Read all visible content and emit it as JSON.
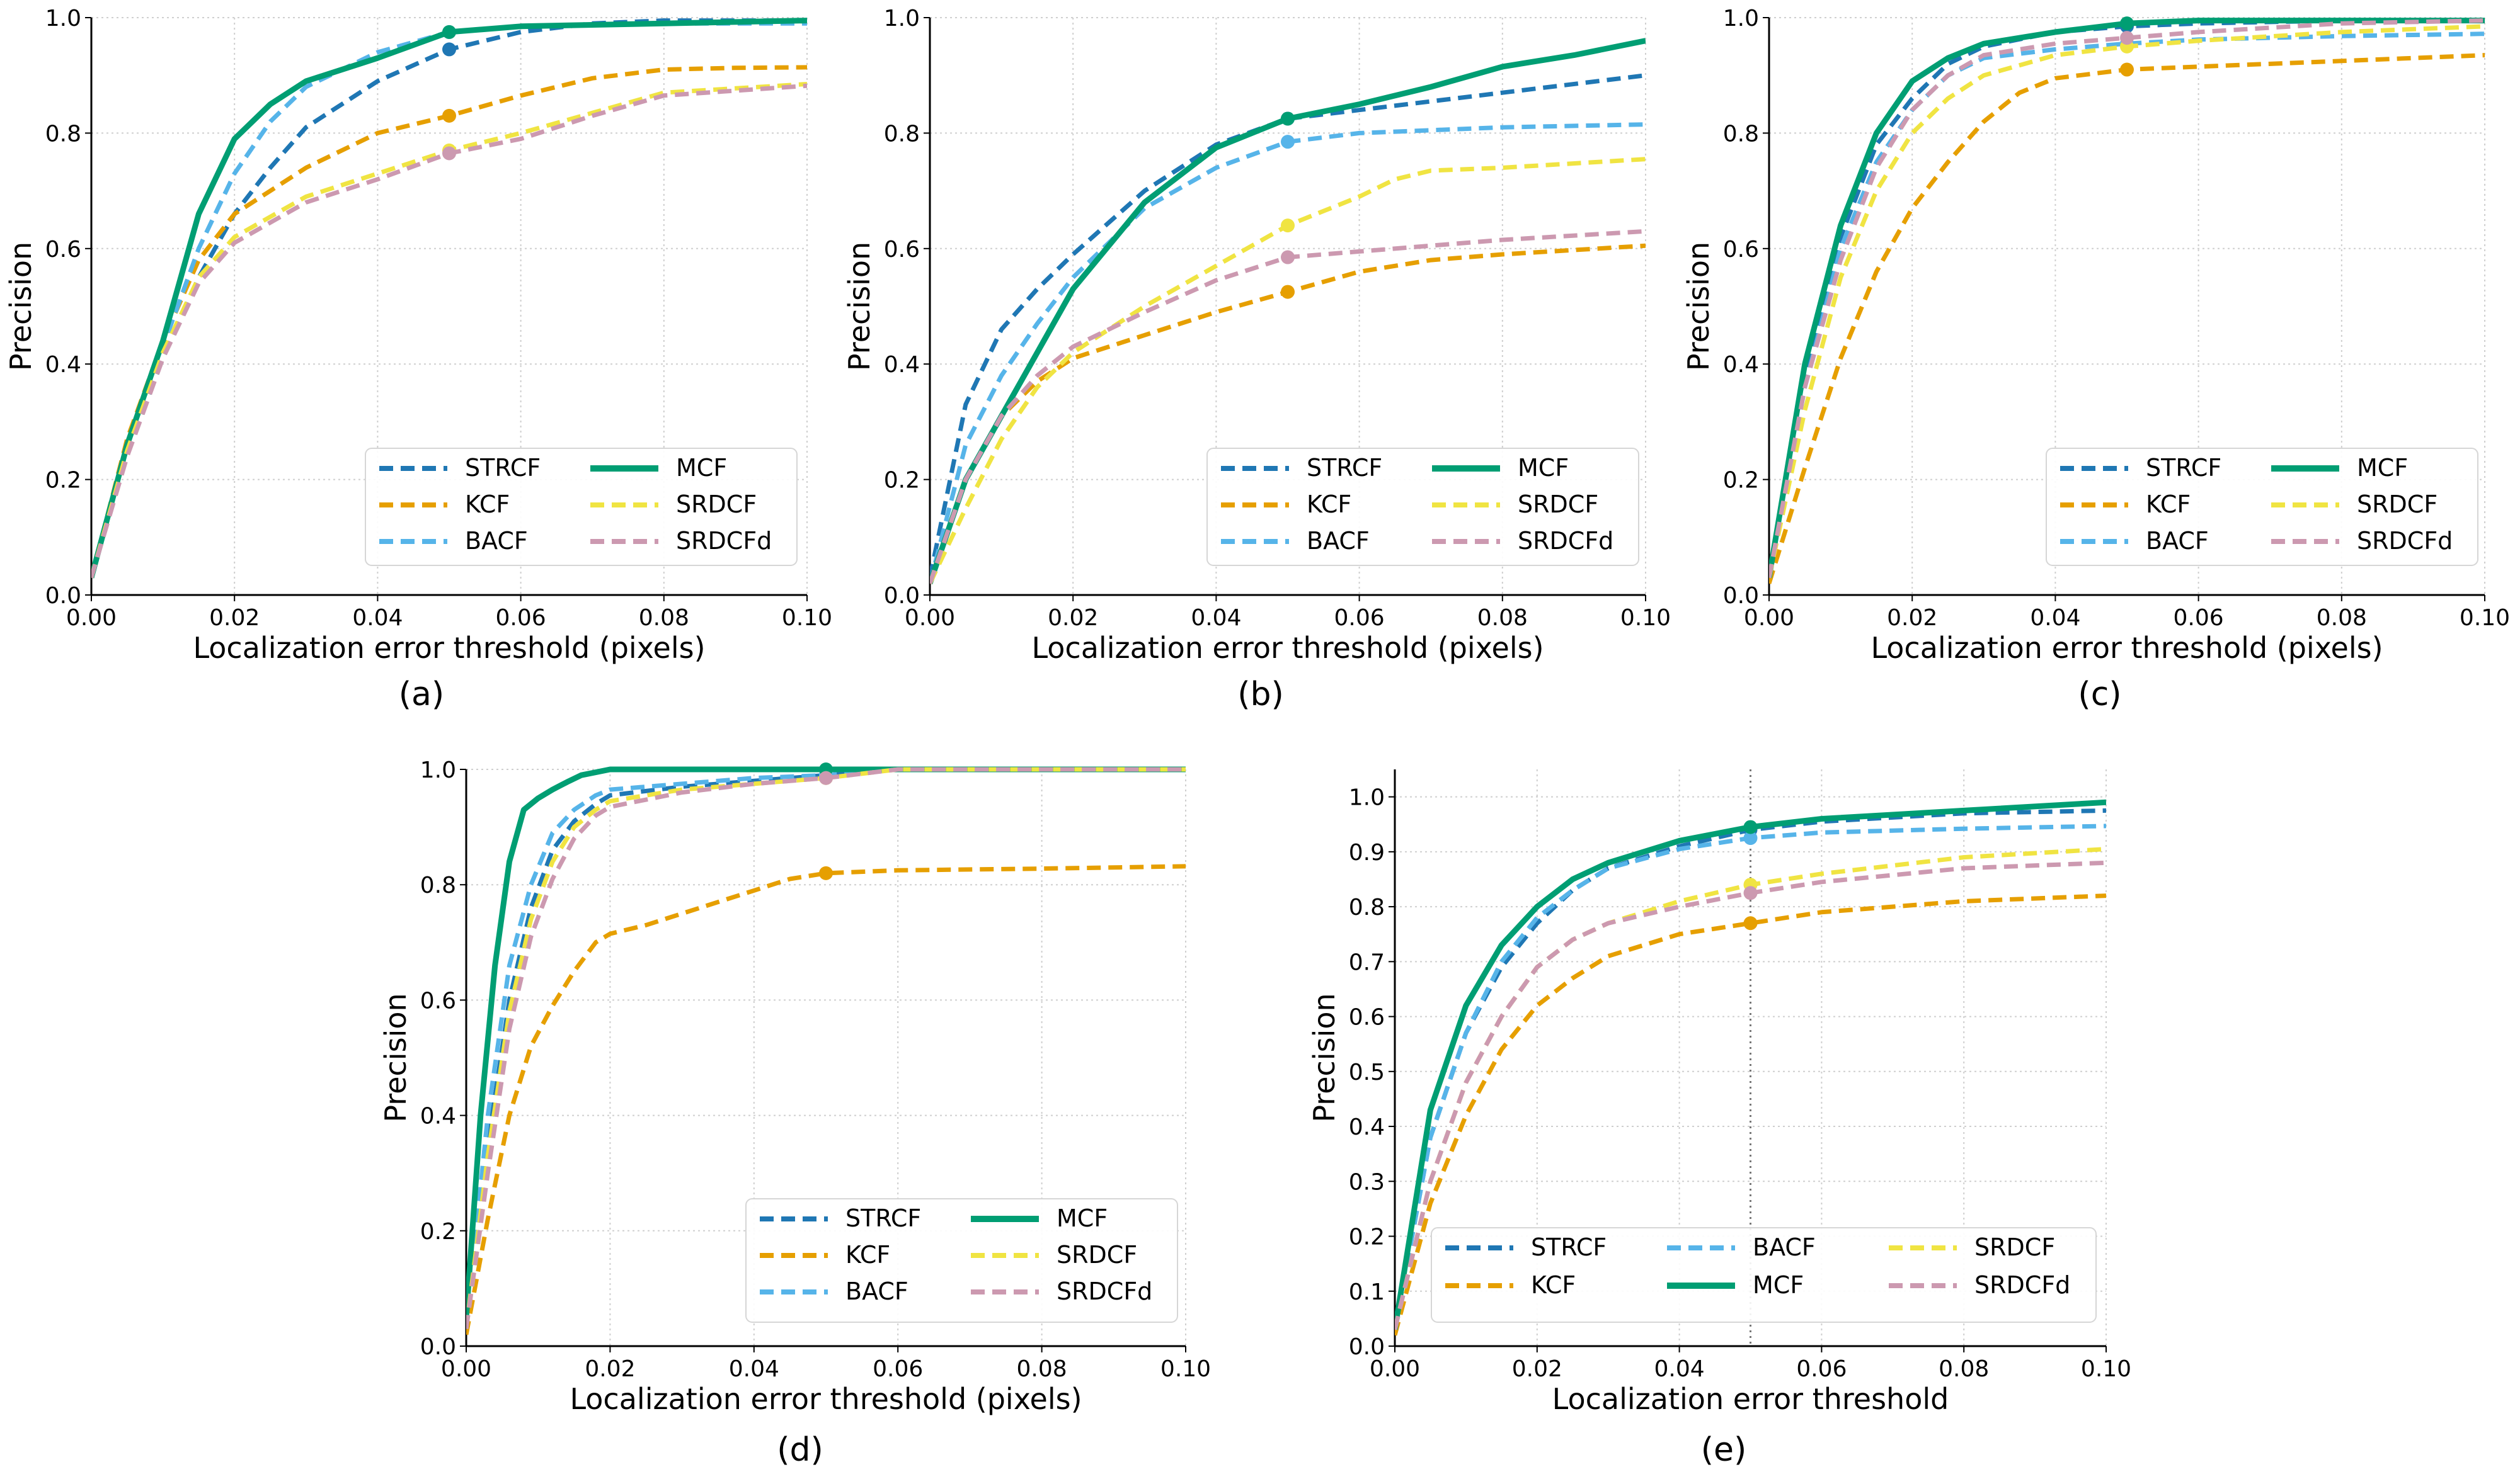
{
  "colors": {
    "STRCF": "#1f77b4",
    "KCF": "#e69f00",
    "BACF": "#56b4e9",
    "MCF": "#009e73",
    "SRDCF": "#f0e442",
    "SRDCFd": "#cc99b0"
  },
  "chart_data": [
    {
      "id": "a",
      "type": "line",
      "caption": "(a)",
      "xlabel": "Localization error threshold (pixels)",
      "ylabel": "Precision",
      "xlim": [
        0,
        0.1
      ],
      "ylim": [
        0,
        1
      ],
      "xticks": [
        "0.00",
        "0.02",
        "0.04",
        "0.06",
        "0.08",
        "0.10"
      ],
      "yticks": [
        "0.0",
        "0.2",
        "0.4",
        "0.6",
        "0.8",
        "1.0"
      ],
      "marker_x": 0.05,
      "legend_position": "lower-right",
      "series": [
        {
          "name": "STRCF",
          "x": [
            0,
            0.005,
            0.01,
            0.015,
            0.02,
            0.025,
            0.03,
            0.04,
            0.05,
            0.06,
            0.07,
            0.08,
            0.1
          ],
          "y": [
            0.03,
            0.25,
            0.41,
            0.55,
            0.66,
            0.74,
            0.81,
            0.89,
            0.945,
            0.975,
            0.99,
            0.995,
            0.995
          ]
        },
        {
          "name": "KCF",
          "x": [
            0,
            0.005,
            0.01,
            0.015,
            0.02,
            0.03,
            0.04,
            0.05,
            0.06,
            0.07,
            0.08,
            0.09,
            0.1
          ],
          "y": [
            0.03,
            0.27,
            0.44,
            0.58,
            0.66,
            0.74,
            0.8,
            0.83,
            0.865,
            0.895,
            0.91,
            0.913,
            0.914
          ]
        },
        {
          "name": "BACF",
          "x": [
            0,
            0.005,
            0.01,
            0.015,
            0.02,
            0.025,
            0.03,
            0.04,
            0.05,
            0.06,
            0.08,
            0.1
          ],
          "y": [
            0.03,
            0.25,
            0.43,
            0.6,
            0.73,
            0.82,
            0.88,
            0.94,
            0.975,
            0.985,
            0.99,
            0.99
          ]
        },
        {
          "name": "MCF",
          "x": [
            0,
            0.005,
            0.01,
            0.015,
            0.02,
            0.025,
            0.03,
            0.04,
            0.05,
            0.06,
            0.08,
            0.1
          ],
          "y": [
            0.03,
            0.26,
            0.44,
            0.66,
            0.79,
            0.85,
            0.89,
            0.93,
            0.975,
            0.985,
            0.99,
            0.995
          ]
        },
        {
          "name": "SRDCF",
          "x": [
            0,
            0.005,
            0.01,
            0.015,
            0.02,
            0.03,
            0.04,
            0.05,
            0.06,
            0.07,
            0.08,
            0.1
          ],
          "y": [
            0.03,
            0.25,
            0.42,
            0.55,
            0.62,
            0.69,
            0.73,
            0.77,
            0.8,
            0.835,
            0.87,
            0.885
          ]
        },
        {
          "name": "SRDCFd",
          "x": [
            0,
            0.005,
            0.01,
            0.015,
            0.02,
            0.03,
            0.04,
            0.05,
            0.06,
            0.07,
            0.08,
            0.1
          ],
          "y": [
            0.03,
            0.24,
            0.41,
            0.54,
            0.61,
            0.68,
            0.72,
            0.765,
            0.79,
            0.83,
            0.865,
            0.882
          ]
        }
      ]
    },
    {
      "id": "b",
      "type": "line",
      "caption": "(b)",
      "xlabel": "Localization error threshold (pixels)",
      "ylabel": "Precision",
      "xlim": [
        0,
        0.1
      ],
      "ylim": [
        0,
        1
      ],
      "xticks": [
        "0.00",
        "0.02",
        "0.04",
        "0.06",
        "0.08",
        "0.10"
      ],
      "yticks": [
        "0.0",
        "0.2",
        "0.4",
        "0.6",
        "0.8",
        "1.0"
      ],
      "marker_x": 0.05,
      "legend_position": "lower-right",
      "series": [
        {
          "name": "STRCF",
          "x": [
            0,
            0.005,
            0.01,
            0.015,
            0.02,
            0.03,
            0.04,
            0.05,
            0.06,
            0.07,
            0.08,
            0.1
          ],
          "y": [
            0.03,
            0.33,
            0.46,
            0.53,
            0.59,
            0.7,
            0.78,
            0.825,
            0.84,
            0.855,
            0.87,
            0.9
          ]
        },
        {
          "name": "KCF",
          "x": [
            0,
            0.005,
            0.01,
            0.015,
            0.02,
            0.03,
            0.04,
            0.05,
            0.06,
            0.07,
            0.08,
            0.1
          ],
          "y": [
            0.02,
            0.2,
            0.31,
            0.37,
            0.41,
            0.45,
            0.49,
            0.525,
            0.56,
            0.58,
            0.59,
            0.605
          ]
        },
        {
          "name": "BACF",
          "x": [
            0,
            0.005,
            0.01,
            0.015,
            0.02,
            0.03,
            0.04,
            0.05,
            0.06,
            0.07,
            0.08,
            0.1
          ],
          "y": [
            0.02,
            0.26,
            0.38,
            0.47,
            0.55,
            0.67,
            0.74,
            0.785,
            0.8,
            0.805,
            0.81,
            0.815
          ]
        },
        {
          "name": "MCF",
          "x": [
            0,
            0.005,
            0.01,
            0.015,
            0.02,
            0.03,
            0.04,
            0.05,
            0.06,
            0.07,
            0.08,
            0.09,
            0.1
          ],
          "y": [
            0.02,
            0.2,
            0.31,
            0.42,
            0.53,
            0.68,
            0.775,
            0.825,
            0.85,
            0.88,
            0.915,
            0.935,
            0.96
          ]
        },
        {
          "name": "SRDCF",
          "x": [
            0,
            0.005,
            0.01,
            0.015,
            0.02,
            0.03,
            0.04,
            0.05,
            0.06,
            0.065,
            0.07,
            0.08,
            0.1
          ],
          "y": [
            0.02,
            0.15,
            0.27,
            0.36,
            0.42,
            0.5,
            0.57,
            0.64,
            0.69,
            0.72,
            0.735,
            0.74,
            0.755
          ]
        },
        {
          "name": "SRDCFd",
          "x": [
            0,
            0.005,
            0.01,
            0.015,
            0.02,
            0.03,
            0.04,
            0.05,
            0.06,
            0.07,
            0.08,
            0.1
          ],
          "y": [
            0.02,
            0.2,
            0.31,
            0.38,
            0.43,
            0.49,
            0.545,
            0.585,
            0.595,
            0.605,
            0.615,
            0.63
          ]
        }
      ]
    },
    {
      "id": "c",
      "type": "line",
      "caption": "(c)",
      "xlabel": "Localization error threshold (pixels)",
      "ylabel": "Precision",
      "xlim": [
        0,
        0.1
      ],
      "ylim": [
        0,
        1
      ],
      "xticks": [
        "0.00",
        "0.02",
        "0.04",
        "0.06",
        "0.08",
        "0.10"
      ],
      "yticks": [
        "0.0",
        "0.2",
        "0.4",
        "0.6",
        "0.8",
        "1.0"
      ],
      "marker_x": 0.05,
      "legend_position": "lower-right",
      "series": [
        {
          "name": "STRCF",
          "x": [
            0,
            0.005,
            0.01,
            0.015,
            0.02,
            0.025,
            0.03,
            0.04,
            0.05,
            0.06,
            0.08,
            0.1
          ],
          "y": [
            0.03,
            0.38,
            0.62,
            0.78,
            0.86,
            0.92,
            0.95,
            0.975,
            0.985,
            0.99,
            0.995,
            0.995
          ]
        },
        {
          "name": "KCF",
          "x": [
            0,
            0.005,
            0.01,
            0.015,
            0.02,
            0.025,
            0.03,
            0.035,
            0.04,
            0.05,
            0.06,
            0.08,
            0.1
          ],
          "y": [
            0.02,
            0.22,
            0.41,
            0.56,
            0.67,
            0.75,
            0.82,
            0.87,
            0.895,
            0.91,
            0.915,
            0.925,
            0.935
          ]
        },
        {
          "name": "BACF",
          "x": [
            0,
            0.005,
            0.01,
            0.015,
            0.02,
            0.025,
            0.03,
            0.04,
            0.05,
            0.06,
            0.08,
            0.1
          ],
          "y": [
            0.03,
            0.36,
            0.6,
            0.75,
            0.84,
            0.9,
            0.93,
            0.945,
            0.955,
            0.962,
            0.968,
            0.972
          ]
        },
        {
          "name": "MCF",
          "x": [
            0,
            0.005,
            0.01,
            0.015,
            0.02,
            0.025,
            0.03,
            0.04,
            0.05,
            0.06,
            0.08,
            0.1
          ],
          "y": [
            0.03,
            0.4,
            0.64,
            0.8,
            0.89,
            0.93,
            0.955,
            0.975,
            0.99,
            0.995,
            0.995,
            0.995
          ]
        },
        {
          "name": "SRDCF",
          "x": [
            0,
            0.005,
            0.01,
            0.015,
            0.02,
            0.025,
            0.03,
            0.04,
            0.05,
            0.06,
            0.08,
            0.1
          ],
          "y": [
            0.03,
            0.32,
            0.55,
            0.7,
            0.8,
            0.86,
            0.9,
            0.935,
            0.95,
            0.96,
            0.975,
            0.985
          ]
        },
        {
          "name": "SRDCFd",
          "x": [
            0,
            0.005,
            0.01,
            0.015,
            0.02,
            0.025,
            0.03,
            0.04,
            0.05,
            0.06,
            0.08,
            0.1
          ],
          "y": [
            0.03,
            0.36,
            0.58,
            0.74,
            0.84,
            0.9,
            0.935,
            0.955,
            0.965,
            0.975,
            0.99,
            0.995
          ]
        }
      ]
    },
    {
      "id": "d",
      "type": "line",
      "caption": "(d)",
      "xlabel": "Localization error threshold (pixels)",
      "ylabel": "Precision",
      "xlim": [
        0,
        0.1
      ],
      "ylim": [
        0,
        1
      ],
      "xticks": [
        "0.00",
        "0.02",
        "0.04",
        "0.06",
        "0.08",
        "0.10"
      ],
      "yticks": [
        "0.0",
        "0.2",
        "0.4",
        "0.6",
        "0.8",
        "1.0"
      ],
      "marker_x": 0.05,
      "legend_position": "lower-right",
      "series": [
        {
          "name": "STRCF",
          "x": [
            0,
            0.003,
            0.006,
            0.009,
            0.012,
            0.015,
            0.018,
            0.02,
            0.03,
            0.04,
            0.05,
            0.06,
            0.1
          ],
          "y": [
            0.03,
            0.35,
            0.6,
            0.76,
            0.86,
            0.91,
            0.94,
            0.955,
            0.97,
            0.98,
            0.99,
            1.0,
            1.0
          ]
        },
        {
          "name": "KCF",
          "x": [
            0,
            0.003,
            0.006,
            0.009,
            0.012,
            0.015,
            0.018,
            0.02,
            0.025,
            0.03,
            0.035,
            0.04,
            0.045,
            0.05,
            0.06,
            0.08,
            0.1
          ],
          "y": [
            0.02,
            0.22,
            0.4,
            0.52,
            0.59,
            0.65,
            0.7,
            0.715,
            0.73,
            0.75,
            0.77,
            0.79,
            0.81,
            0.82,
            0.825,
            0.828,
            0.832
          ]
        },
        {
          "name": "BACF",
          "x": [
            0,
            0.003,
            0.006,
            0.009,
            0.012,
            0.015,
            0.018,
            0.02,
            0.03,
            0.04,
            0.05,
            0.06,
            0.1
          ],
          "y": [
            0.03,
            0.4,
            0.66,
            0.8,
            0.89,
            0.93,
            0.955,
            0.965,
            0.975,
            0.985,
            0.99,
            1.0,
            1.0
          ]
        },
        {
          "name": "MCF",
          "x": [
            0,
            0.002,
            0.004,
            0.006,
            0.008,
            0.01,
            0.012,
            0.014,
            0.016,
            0.018,
            0.02,
            0.03,
            0.05,
            0.1
          ],
          "y": [
            0.05,
            0.4,
            0.66,
            0.84,
            0.93,
            0.95,
            0.965,
            0.978,
            0.99,
            0.995,
            1.0,
            1.0,
            1.0,
            1.0
          ]
        },
        {
          "name": "SRDCF",
          "x": [
            0,
            0.003,
            0.006,
            0.009,
            0.012,
            0.015,
            0.018,
            0.02,
            0.03,
            0.04,
            0.05,
            0.06,
            0.1
          ],
          "y": [
            0.03,
            0.33,
            0.58,
            0.74,
            0.84,
            0.9,
            0.93,
            0.945,
            0.965,
            0.975,
            0.985,
            1.0,
            1.0
          ]
        },
        {
          "name": "SRDCFd",
          "x": [
            0,
            0.003,
            0.006,
            0.009,
            0.012,
            0.015,
            0.018,
            0.02,
            0.03,
            0.04,
            0.05,
            0.06,
            0.1
          ],
          "y": [
            0.03,
            0.3,
            0.55,
            0.71,
            0.81,
            0.88,
            0.92,
            0.935,
            0.96,
            0.975,
            0.985,
            1.0,
            1.0
          ]
        }
      ]
    },
    {
      "id": "e",
      "type": "line",
      "caption": "(e)",
      "xlabel": "Localization error threshold",
      "ylabel": "Precision",
      "xlim": [
        0,
        0.1
      ],
      "ylim": [
        0,
        1.05
      ],
      "xticks": [
        "0.00",
        "0.02",
        "0.04",
        "0.06",
        "0.08",
        "0.10"
      ],
      "yticks": [
        "0.0",
        "0.1",
        "0.2",
        "0.3",
        "0.4",
        "0.5",
        "0.6",
        "0.7",
        "0.8",
        "0.9",
        "1.0"
      ],
      "marker_x": 0.05,
      "marker_vline": true,
      "legend_position": "lower-right",
      "series": [
        {
          "name": "STRCF",
          "x": [
            0,
            0.005,
            0.01,
            0.015,
            0.02,
            0.025,
            0.03,
            0.04,
            0.05,
            0.06,
            0.08,
            0.1
          ],
          "y": [
            0.03,
            0.38,
            0.57,
            0.69,
            0.77,
            0.83,
            0.87,
            0.91,
            0.94,
            0.955,
            0.97,
            0.975
          ]
        },
        {
          "name": "KCF",
          "x": [
            0,
            0.005,
            0.01,
            0.015,
            0.02,
            0.025,
            0.03,
            0.04,
            0.05,
            0.06,
            0.08,
            0.1
          ],
          "y": [
            0.02,
            0.26,
            0.42,
            0.54,
            0.62,
            0.67,
            0.71,
            0.75,
            0.77,
            0.79,
            0.81,
            0.82
          ]
        },
        {
          "name": "BACF",
          "x": [
            0,
            0.005,
            0.01,
            0.015,
            0.02,
            0.025,
            0.03,
            0.04,
            0.05,
            0.06,
            0.08,
            0.1
          ],
          "y": [
            0.03,
            0.38,
            0.57,
            0.7,
            0.78,
            0.83,
            0.87,
            0.905,
            0.925,
            0.935,
            0.942,
            0.947
          ]
        },
        {
          "name": "MCF",
          "x": [
            0,
            0.005,
            0.01,
            0.015,
            0.02,
            0.025,
            0.03,
            0.04,
            0.05,
            0.06,
            0.08,
            0.1
          ],
          "y": [
            0.03,
            0.43,
            0.62,
            0.73,
            0.8,
            0.85,
            0.88,
            0.92,
            0.945,
            0.96,
            0.975,
            0.99
          ]
        },
        {
          "name": "SRDCF",
          "x": [
            0,
            0.005,
            0.01,
            0.015,
            0.02,
            0.025,
            0.03,
            0.04,
            0.05,
            0.06,
            0.08,
            0.1
          ],
          "y": [
            0.03,
            0.3,
            0.48,
            0.6,
            0.69,
            0.74,
            0.77,
            0.81,
            0.84,
            0.86,
            0.89,
            0.905
          ]
        },
        {
          "name": "SRDCFd",
          "x": [
            0,
            0.005,
            0.01,
            0.015,
            0.02,
            0.025,
            0.03,
            0.04,
            0.05,
            0.06,
            0.08,
            0.1
          ],
          "y": [
            0.03,
            0.3,
            0.48,
            0.6,
            0.69,
            0.74,
            0.77,
            0.8,
            0.825,
            0.845,
            0.87,
            0.88
          ]
        }
      ]
    }
  ]
}
